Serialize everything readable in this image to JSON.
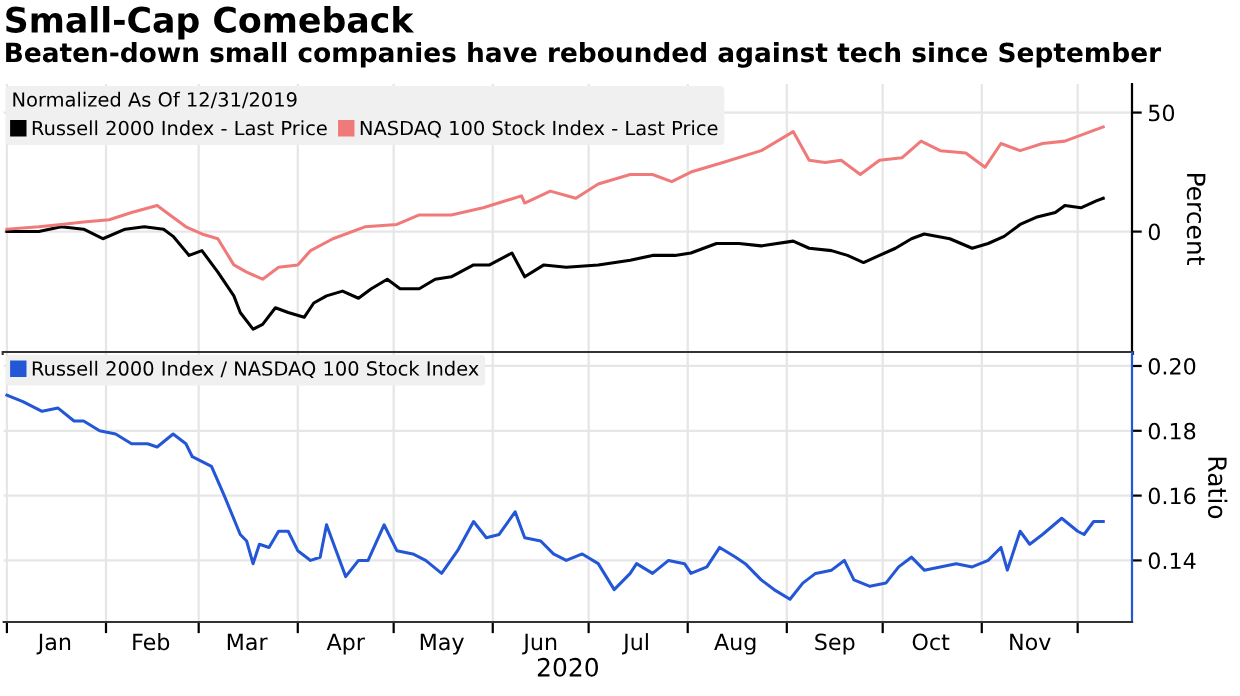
{
  "chart_data": [
    {
      "type": "line",
      "title": "Small-Cap Comeback",
      "subtitle": "Beaten-down small companies have rebounded against tech since September",
      "legend_title": "Normalized As Of 12/31/2019",
      "ylabel": "Percent",
      "legend": "top left",
      "grid": true,
      "tick_labels": "y",
      "xlim": [
        "2019-12-31",
        "2020-12-18"
      ],
      "ylim": [
        -51,
        62
      ],
      "yticks": [
        0,
        50
      ],
      "xticks": [
        {
          "value": "2020-01-01",
          "label": null
        },
        {
          "value": "2020-02-01",
          "label": null
        },
        {
          "value": "2020-03-01",
          "label": null
        },
        {
          "value": "2020-04-01",
          "label": null
        },
        {
          "value": "2020-05-01",
          "label": null
        },
        {
          "value": "2020-06-01",
          "label": null
        },
        {
          "value": "2020-07-01",
          "label": null
        },
        {
          "value": "2020-08-01",
          "label": null
        },
        {
          "value": "2020-09-01",
          "label": null
        },
        {
          "value": "2020-10-01",
          "label": null
        },
        {
          "value": "2020-11-01",
          "label": null
        },
        {
          "value": "2020-12-01",
          "label": null
        }
      ],
      "series": [
        {
          "name": "Russell 2000 Index - Last Price",
          "color": "#000000",
          "x": [
            "2020-01-01",
            "2020-01-11",
            "2020-01-18",
            "2020-01-25",
            "2020-01-31",
            "2020-02-07",
            "2020-02-13",
            "2020-02-19",
            "2020-02-22",
            "2020-02-27",
            "2020-03-02",
            "2020-03-07",
            "2020-03-12",
            "2020-03-14",
            "2020-03-18",
            "2020-03-21",
            "2020-03-25",
            "2020-03-29",
            "2020-04-03",
            "2020-04-06",
            "2020-04-10",
            "2020-04-15",
            "2020-04-20",
            "2020-04-24",
            "2020-04-29",
            "2020-05-03",
            "2020-05-09",
            "2020-05-14",
            "2020-05-19",
            "2020-05-26",
            "2020-05-31",
            "2020-06-07",
            "2020-06-11",
            "2020-06-17",
            "2020-06-24",
            "2020-07-04",
            "2020-07-14",
            "2020-07-21",
            "2020-07-28",
            "2020-08-02",
            "2020-08-10",
            "2020-08-17",
            "2020-08-24",
            "2020-09-03",
            "2020-09-08",
            "2020-09-15",
            "2020-09-20",
            "2020-09-25",
            "2020-09-30",
            "2020-10-05",
            "2020-10-10",
            "2020-10-14",
            "2020-10-22",
            "2020-10-29",
            "2020-11-03",
            "2020-11-08",
            "2020-11-13",
            "2020-11-18",
            "2020-11-24",
            "2020-11-27",
            "2020-12-02",
            "2020-12-07",
            "2020-12-09"
          ],
          "values": [
            0,
            0,
            2,
            1,
            -3,
            1,
            2,
            1,
            -2,
            -10,
            -8,
            -17,
            -27,
            -34,
            -41,
            -39,
            -32,
            -34,
            -36,
            -30,
            -27,
            -25,
            -28,
            -24,
            -20,
            -24,
            -24,
            -20,
            -19,
            -14,
            -14,
            -9,
            -19,
            -14,
            -15,
            -14,
            -12,
            -10,
            -10,
            -9,
            -5,
            -5,
            -6,
            -4,
            -7,
            -8,
            -10,
            -13,
            -10,
            -7,
            -3,
            -1,
            -3,
            -7,
            -5,
            -2,
            3,
            6,
            8,
            11,
            10,
            13,
            14
          ]
        },
        {
          "name": "NASDAQ 100 Stock Index - Last Price",
          "color": "#f07a7a",
          "x": [
            "2020-01-01",
            "2020-01-11",
            "2020-01-18",
            "2020-01-25",
            "2020-02-02",
            "2020-02-09",
            "2020-02-17",
            "2020-02-21",
            "2020-02-26",
            "2020-03-02",
            "2020-03-07",
            "2020-03-12",
            "2020-03-16",
            "2020-03-21",
            "2020-03-26",
            "2020-04-01",
            "2020-04-05",
            "2020-04-12",
            "2020-04-22",
            "2020-05-02",
            "2020-05-09",
            "2020-05-19",
            "2020-05-29",
            "2020-06-10",
            "2020-06-11",
            "2020-06-19",
            "2020-06-27",
            "2020-07-04",
            "2020-07-14",
            "2020-07-21",
            "2020-07-27",
            "2020-08-02",
            "2020-08-12",
            "2020-08-24",
            "2020-09-03",
            "2020-09-08",
            "2020-09-13",
            "2020-09-18",
            "2020-09-24",
            "2020-09-30",
            "2020-10-07",
            "2020-10-13",
            "2020-10-19",
            "2020-10-27",
            "2020-11-02",
            "2020-11-07",
            "2020-11-13",
            "2020-11-20",
            "2020-11-27",
            "2020-12-05",
            "2020-12-09"
          ],
          "values": [
            1,
            2,
            3,
            4,
            5,
            8,
            11,
            7,
            2,
            -1,
            -3,
            -14,
            -17,
            -20,
            -15,
            -14,
            -8,
            -3,
            2,
            3,
            7,
            7,
            10,
            15,
            12,
            17,
            14,
            20,
            24,
            24,
            21,
            25,
            29,
            34,
            42,
            30,
            29,
            30,
            24,
            30,
            31,
            38,
            34,
            33,
            27,
            37,
            34,
            37,
            38,
            42,
            44
          ]
        }
      ]
    },
    {
      "type": "line",
      "xlabel": "2020",
      "ylabel": "Ratio",
      "legend": "top left",
      "grid": true,
      "xlim": [
        "2019-12-31",
        "2020-12-18"
      ],
      "ylim": [
        0.121,
        0.204
      ],
      "yticks": [
        {
          "value": 0.14,
          "label": "0.14"
        },
        {
          "value": 0.16,
          "label": "0.16"
        },
        {
          "value": 0.18,
          "label": "0.18"
        },
        {
          "value": 0.2,
          "label": "0.20"
        }
      ],
      "xticks": [
        {
          "value": "2020-01-01",
          "label": null
        },
        {
          "value": "2020-01-16",
          "label": "Jan"
        },
        {
          "value": "2020-02-01",
          "label": null
        },
        {
          "value": "2020-02-15",
          "label": "Feb"
        },
        {
          "value": "2020-03-01",
          "label": null
        },
        {
          "value": "2020-03-16",
          "label": "Mar"
        },
        {
          "value": "2020-04-01",
          "label": null
        },
        {
          "value": "2020-04-16",
          "label": "Apr"
        },
        {
          "value": "2020-05-01",
          "label": null
        },
        {
          "value": "2020-05-16",
          "label": "May"
        },
        {
          "value": "2020-06-01",
          "label": null
        },
        {
          "value": "2020-06-16",
          "label": "Jun"
        },
        {
          "value": "2020-07-01",
          "label": null
        },
        {
          "value": "2020-07-16",
          "label": "Jul"
        },
        {
          "value": "2020-08-01",
          "label": null
        },
        {
          "value": "2020-08-16",
          "label": "Aug"
        },
        {
          "value": "2020-09-01",
          "label": null
        },
        {
          "value": "2020-09-16",
          "label": "Sep"
        },
        {
          "value": "2020-10-01",
          "label": null
        },
        {
          "value": "2020-10-16",
          "label": "Oct"
        },
        {
          "value": "2020-11-01",
          "label": null
        },
        {
          "value": "2020-11-16",
          "label": "Nov"
        },
        {
          "value": "2020-12-01",
          "label": null
        }
      ],
      "series": [
        {
          "name": "Russell 2000 Index / NASDAQ 100 Stock Index",
          "color": "#2457d6",
          "x": [
            "2020-01-01",
            "2020-01-06",
            "2020-01-12",
            "2020-01-17",
            "2020-01-22",
            "2020-01-25",
            "2020-01-30",
            "2020-02-04",
            "2020-02-09",
            "2020-02-14",
            "2020-02-17",
            "2020-02-22",
            "2020-02-26",
            "2020-02-28",
            "2020-03-05",
            "2020-03-09",
            "2020-03-14",
            "2020-03-16",
            "2020-03-18",
            "2020-03-20",
            "2020-03-23",
            "2020-03-26",
            "2020-03-29",
            "2020-04-01",
            "2020-04-05",
            "2020-04-08",
            "2020-04-10",
            "2020-04-13",
            "2020-04-16",
            "2020-04-20",
            "2020-04-23",
            "2020-04-28",
            "2020-05-02",
            "2020-05-07",
            "2020-05-11",
            "2020-05-16",
            "2020-05-21",
            "2020-05-26",
            "2020-05-30",
            "2020-06-03",
            "2020-06-08",
            "2020-06-11",
            "2020-06-16",
            "2020-06-20",
            "2020-06-24",
            "2020-06-29",
            "2020-07-04",
            "2020-07-09",
            "2020-07-14",
            "2020-07-16",
            "2020-07-21",
            "2020-07-26",
            "2020-07-31",
            "2020-08-02",
            "2020-08-07",
            "2020-08-11",
            "2020-08-16",
            "2020-08-19",
            "2020-08-24",
            "2020-08-28",
            "2020-09-02",
            "2020-09-06",
            "2020-09-10",
            "2020-09-15",
            "2020-09-19",
            "2020-09-22",
            "2020-09-27",
            "2020-10-02",
            "2020-10-06",
            "2020-10-10",
            "2020-10-14",
            "2020-10-19",
            "2020-10-24",
            "2020-10-29",
            "2020-11-03",
            "2020-11-07",
            "2020-11-09",
            "2020-11-13",
            "2020-11-16",
            "2020-11-20",
            "2020-11-26",
            "2020-12-01",
            "2020-12-03",
            "2020-12-06",
            "2020-12-09"
          ],
          "values": [
            0.191,
            0.189,
            0.186,
            0.187,
            0.183,
            0.183,
            0.18,
            0.179,
            0.176,
            0.176,
            0.175,
            0.179,
            0.176,
            0.172,
            0.169,
            0.16,
            0.148,
            0.146,
            0.139,
            0.145,
            0.144,
            0.149,
            0.149,
            0.143,
            0.14,
            0.141,
            0.151,
            0.143,
            0.135,
            0.14,
            0.14,
            0.151,
            0.143,
            0.142,
            0.14,
            0.136,
            0.143,
            0.152,
            0.147,
            0.148,
            0.155,
            0.147,
            0.146,
            0.142,
            0.14,
            0.142,
            0.139,
            0.131,
            0.136,
            0.139,
            0.136,
            0.14,
            0.139,
            0.136,
            0.138,
            0.144,
            0.141,
            0.139,
            0.134,
            0.131,
            0.128,
            0.133,
            0.136,
            0.137,
            0.14,
            0.134,
            0.132,
            0.133,
            0.138,
            0.141,
            0.137,
            0.138,
            0.139,
            0.138,
            0.14,
            0.144,
            0.137,
            0.149,
            0.145,
            0.148,
            0.153,
            0.149,
            0.148,
            0.152,
            0.152
          ]
        }
      ]
    }
  ]
}
